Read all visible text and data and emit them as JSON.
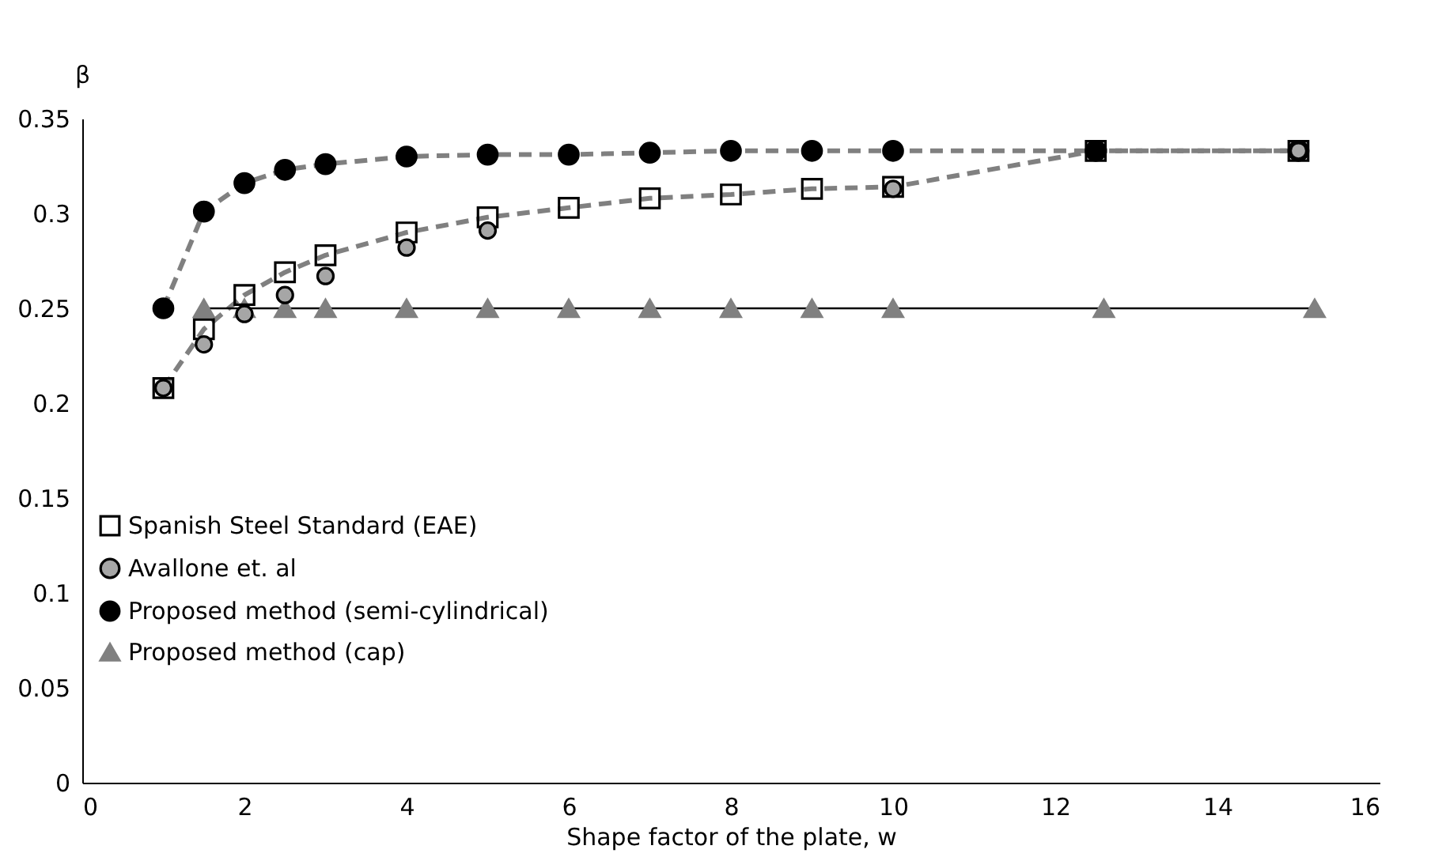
{
  "chart_data": {
    "type": "line",
    "xlabel": "Shape factor of the plate, w",
    "ylabel": "β",
    "x": [
      1,
      1.5,
      2,
      2.5,
      3,
      4,
      5,
      6,
      7,
      8,
      9,
      10,
      12.5,
      15
    ],
    "series": [
      {
        "name": "Spanish Steel Standard (EAE)",
        "color": "#000000",
        "marker": "square",
        "line_style": "dashed",
        "values": [
          0.208,
          0.239,
          0.257,
          0.269,
          0.278,
          0.29,
          0.298,
          0.303,
          0.308,
          0.31,
          0.313,
          0.314,
          0.333,
          0.333
        ]
      },
      {
        "name": "Avallone et. al",
        "type": "scatter",
        "color": "#a6a6a6",
        "marker": "circle",
        "values": [
          0.208,
          0.231,
          0.247,
          0.257,
          0.267,
          0.282,
          0.291,
          null,
          null,
          null,
          null,
          0.313,
          null,
          0.333
        ]
      },
      {
        "name": "Proposed method (semi-cylindrical)",
        "color": "#000000",
        "marker": "circle",
        "line_style": "dashed",
        "values": [
          0.25,
          0.301,
          0.316,
          0.323,
          0.326,
          0.33,
          0.331,
          0.331,
          0.332,
          0.333,
          0.333,
          0.333,
          0.333,
          0.333
        ]
      },
      {
        "name": "Proposed method (cap)",
        "color": "#808080",
        "marker": "triangle",
        "line_style": "solid",
        "x": [
          1.5,
          2,
          2.5,
          3,
          4,
          5,
          6,
          7,
          8,
          9,
          10,
          12.6,
          15.2
        ],
        "values": [
          0.25,
          0.25,
          0.25,
          0.25,
          0.25,
          0.25,
          0.25,
          0.25,
          0.25,
          0.25,
          0.25,
          0.25,
          0.25
        ]
      }
    ],
    "xlim": [
      0,
      16
    ],
    "xticks": [
      0,
      2,
      4,
      6,
      8,
      10,
      12,
      14,
      16
    ],
    "ylim": [
      0,
      0.35
    ],
    "yticks": [
      0,
      0.05,
      0.1,
      0.15,
      0.2,
      0.25,
      0.3,
      0.35
    ],
    "grid": false,
    "legend": "left"
  }
}
